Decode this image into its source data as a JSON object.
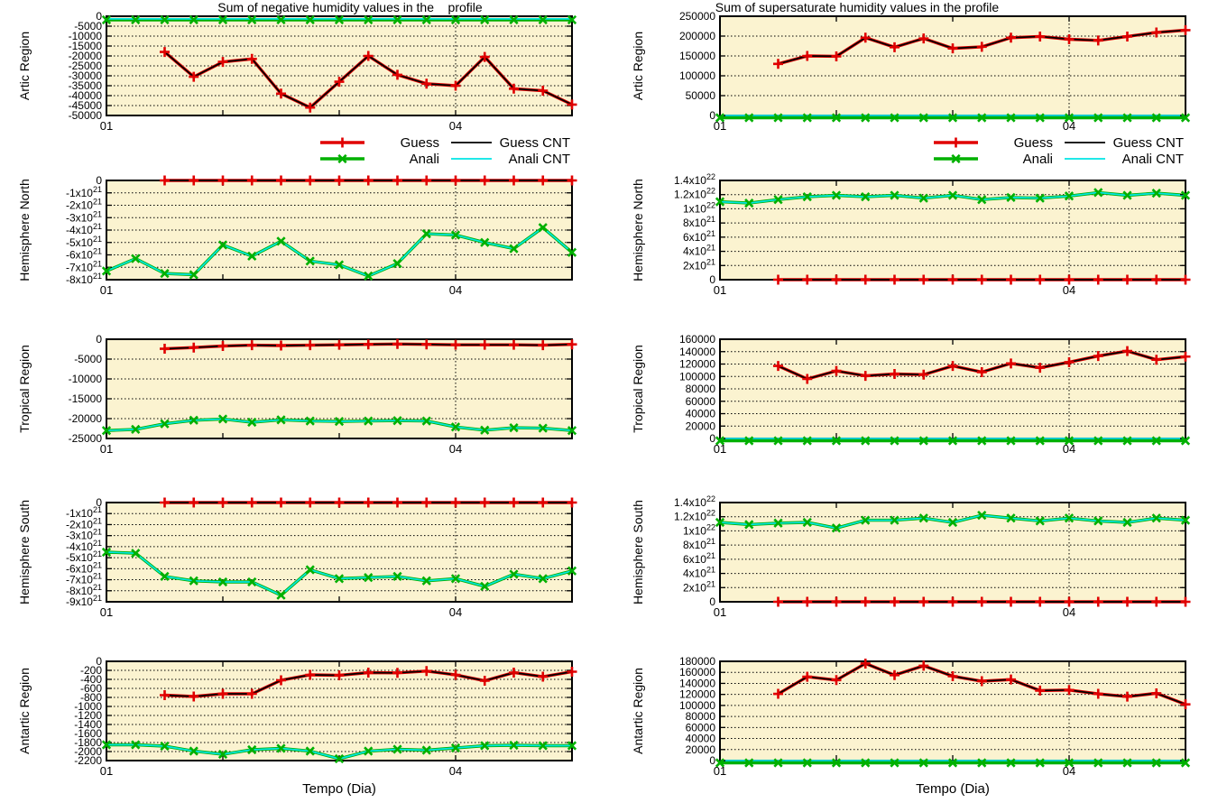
{
  "titles": {
    "left": "Sum of negative humidity values in the    profile",
    "right": "Sum of supersaturate humidity values in the profile"
  },
  "xlabel": "Tempo (Dia)",
  "colors": {
    "guess": "#e00000",
    "anali": "#00b000",
    "guess_cnt": "#000000",
    "anali_cnt": "#00e5e5",
    "plot_fill": "#fbf3d0",
    "frame": "#000000",
    "grid": "#000000"
  },
  "legend": {
    "items": [
      {
        "id": "guess",
        "label": "Guess",
        "marker": "plus"
      },
      {
        "id": "anali",
        "label": "Anali",
        "marker": "x"
      },
      {
        "id": "guess_cnt",
        "label": "Guess CNT",
        "marker": "none"
      },
      {
        "id": "anali_cnt",
        "label": "Anali CNT",
        "marker": "none"
      }
    ]
  },
  "x_axis": {
    "range_days": [
      1,
      5
    ],
    "tick_labels": [
      {
        "day": 1,
        "label": "01"
      },
      {
        "day": 4,
        "label": "04"
      }
    ],
    "minor_tick_days": [
      2,
      3,
      4
    ],
    "gridline_day": 4
  },
  "chart_data": [
    {
      "id": "artic-negative",
      "type": "line",
      "region": "Artic Region",
      "ylim": [
        -50000,
        0
      ],
      "ytick_values": [
        0,
        -5000,
        -10000,
        -15000,
        -20000,
        -25000,
        -30000,
        -35000,
        -40000,
        -45000,
        -50000
      ],
      "ytick_labels": [
        "0",
        "-5000",
        "-10000",
        "-15000",
        "-20000",
        "-25000",
        "-30000",
        "-35000",
        "-40000",
        "-45000",
        "-50000"
      ],
      "series": [
        {
          "name": "Guess",
          "key": "guess",
          "start_day": 1.5,
          "step_days": 0.25,
          "values": [
            -18000,
            -30500,
            -23000,
            -21500,
            -39000,
            -46000,
            -33000,
            -20000,
            -29500,
            -34000,
            -35000,
            -20500,
            -36500,
            -37500,
            -44500
          ]
        },
        {
          "name": "Guess CNT",
          "key": "guess_cnt",
          "overlaps": "guess"
        },
        {
          "name": "Anali",
          "key": "anali",
          "start_day": 1.0,
          "step_days": 0.25,
          "values": [
            -1800,
            -1800,
            -1800,
            -1800,
            -1800,
            -1800,
            -1800,
            -1800,
            -1800,
            -1800,
            -1800,
            -1800,
            -1800,
            -1800,
            -1800,
            -1800,
            -1800
          ]
        },
        {
          "name": "Anali CNT",
          "key": "anali_cnt",
          "start_day": 1.0,
          "step_days": 0.25,
          "values": [
            -1300,
            -1300,
            -1300,
            -1300,
            -1300,
            -1300,
            -1300,
            -1300,
            -1300,
            -1300,
            -1300,
            -1300,
            -1300,
            -1300,
            -1300,
            -1300,
            -1300
          ]
        }
      ]
    },
    {
      "id": "artic-supersaturate",
      "type": "line",
      "region": "Artic Region",
      "ylim": [
        0,
        250000
      ],
      "ytick_values": [
        0,
        50000,
        100000,
        150000,
        200000,
        250000
      ],
      "ytick_labels": [
        "0",
        "50000",
        "100000",
        "150000",
        "200000",
        "250000"
      ],
      "series": [
        {
          "name": "Guess",
          "key": "guess",
          "start_day": 1.5,
          "step_days": 0.25,
          "values": [
            130000,
            150000,
            149000,
            196000,
            172000,
            194000,
            169000,
            173000,
            196000,
            199000,
            192000,
            189000,
            199000,
            209000,
            215000
          ]
        },
        {
          "name": "Guess CNT",
          "key": "guess_cnt",
          "overlaps": "guess"
        },
        {
          "name": "Anali",
          "key": "anali",
          "start_day": 1.0,
          "step_days": 0.25,
          "values": [
            0,
            0,
            0,
            0,
            0,
            0,
            0,
            0,
            0,
            0,
            0,
            0,
            0,
            0,
            0,
            0,
            0
          ]
        },
        {
          "name": "Anali CNT",
          "key": "anali_cnt",
          "overlaps": "anali"
        }
      ]
    },
    {
      "id": "hemisphere-north-negative",
      "type": "line",
      "region": "Hemisphere North",
      "ylim": [
        -8e+21,
        0
      ],
      "ytick_values": [
        0,
        -1e+21,
        -2e+21,
        -3e+21,
        -4e+21,
        -5e+21,
        -6e+21,
        -7e+21,
        -8e+21
      ],
      "ytick_labels": [
        "0",
        "-1x10^21",
        "-2x10^21",
        "-3x10^21",
        "-4x10^21",
        "-5x10^21",
        "-6x10^21",
        "-7x10^21",
        "-8x10^21"
      ],
      "series": [
        {
          "name": "Guess",
          "key": "guess",
          "start_day": 1.5,
          "step_days": 0.25,
          "values": [
            0,
            0,
            0,
            0,
            0,
            0,
            0,
            0,
            0,
            0,
            0,
            0,
            0,
            0,
            0
          ]
        },
        {
          "name": "Guess CNT",
          "key": "guess_cnt",
          "overlaps": "guess"
        },
        {
          "name": "Anali",
          "key": "anali",
          "start_day": 1.0,
          "step_days": 0.25,
          "values": [
            -7.3e+21,
            -6.3e+21,
            -7.5e+21,
            -7.6e+21,
            -5.2e+21,
            -6.1e+21,
            -4.9e+21,
            -6.5e+21,
            -6.8e+21,
            -7.7e+21,
            -6.7e+21,
            -4.3e+21,
            -4.4e+21,
            -5e+21,
            -5.5e+21,
            -3.8e+21,
            -5.8e+21
          ]
        },
        {
          "name": "Anali CNT",
          "key": "anali_cnt",
          "overlaps": "anali"
        }
      ]
    },
    {
      "id": "hemisphere-north-supersaturate",
      "type": "line",
      "region": "Hemisphere North",
      "ylim": [
        0,
        1.4e+22
      ],
      "ytick_values": [
        0,
        2e+21,
        4e+21,
        6e+21,
        8e+21,
        1e+22,
        1.2e+22,
        1.4e+22
      ],
      "ytick_labels": [
        "0",
        "2x10^21",
        "4x10^21",
        "6x10^21",
        "8x10^21",
        "1x10^22",
        "1.2x10^22",
        "1.4x10^22"
      ],
      "series": [
        {
          "name": "Guess",
          "key": "guess",
          "start_day": 1.5,
          "step_days": 0.25,
          "values": [
            0,
            0,
            0,
            0,
            0,
            0,
            0,
            0,
            0,
            0,
            0,
            0,
            0,
            0,
            0
          ]
        },
        {
          "name": "Guess CNT",
          "key": "guess_cnt",
          "overlaps": "guess"
        },
        {
          "name": "Anali",
          "key": "anali",
          "start_day": 1.0,
          "step_days": 0.25,
          "values": [
            1.1e+22,
            1.08e+22,
            1.13e+22,
            1.17e+22,
            1.19e+22,
            1.17e+22,
            1.19e+22,
            1.15e+22,
            1.19e+22,
            1.13e+22,
            1.16e+22,
            1.15e+22,
            1.18e+22,
            1.23e+22,
            1.19e+22,
            1.22e+22,
            1.19e+22
          ]
        },
        {
          "name": "Anali CNT",
          "key": "anali_cnt",
          "overlaps": "anali"
        }
      ]
    },
    {
      "id": "tropical-negative",
      "type": "line",
      "region": "Tropical Region",
      "ylim": [
        -25000,
        0
      ],
      "ytick_values": [
        0,
        -5000,
        -10000,
        -15000,
        -20000,
        -25000
      ],
      "ytick_labels": [
        "0",
        "-5000",
        "-10000",
        "-15000",
        "-20000",
        "-25000"
      ],
      "series": [
        {
          "name": "Guess",
          "key": "guess",
          "start_day": 1.5,
          "step_days": 0.25,
          "values": [
            -2400,
            -2100,
            -1700,
            -1500,
            -1600,
            -1500,
            -1400,
            -1300,
            -1200,
            -1300,
            -1400,
            -1400,
            -1400,
            -1500,
            -1300
          ]
        },
        {
          "name": "Guess CNT",
          "key": "guess_cnt",
          "overlaps": "guess"
        },
        {
          "name": "Anali",
          "key": "anali",
          "start_day": 1.0,
          "step_days": 0.25,
          "values": [
            -23000,
            -22700,
            -21300,
            -20400,
            -20100,
            -20900,
            -20300,
            -20600,
            -20700,
            -20600,
            -20500,
            -20600,
            -22100,
            -22900,
            -22300,
            -22400,
            -23000
          ]
        },
        {
          "name": "Anali CNT",
          "key": "anali_cnt",
          "overlaps": "anali"
        }
      ]
    },
    {
      "id": "tropical-supersaturate",
      "type": "line",
      "region": "Tropical Region",
      "ylim": [
        0,
        160000
      ],
      "ytick_values": [
        0,
        20000,
        40000,
        60000,
        80000,
        100000,
        120000,
        140000,
        160000
      ],
      "ytick_labels": [
        "0",
        "20000",
        "40000",
        "60000",
        "80000",
        "100000",
        "120000",
        "140000",
        "160000"
      ],
      "series": [
        {
          "name": "Guess",
          "key": "guess",
          "start_day": 1.5,
          "step_days": 0.25,
          "values": [
            117000,
            96000,
            109000,
            101000,
            104000,
            103000,
            117000,
            107000,
            121000,
            114000,
            123000,
            133000,
            141000,
            127000,
            132000
          ]
        },
        {
          "name": "Guess CNT",
          "key": "guess_cnt",
          "overlaps": "guess"
        },
        {
          "name": "Anali",
          "key": "anali",
          "start_day": 1.0,
          "step_days": 0.25,
          "values": [
            0,
            0,
            0,
            0,
            0,
            0,
            0,
            0,
            0,
            0,
            0,
            0,
            0,
            0,
            0,
            0,
            0
          ]
        },
        {
          "name": "Anali CNT",
          "key": "anali_cnt",
          "overlaps": "anali"
        }
      ]
    },
    {
      "id": "hemisphere-south-negative",
      "type": "line",
      "region": "Hemisphere South",
      "ylim": [
        -9e+21,
        0
      ],
      "ytick_values": [
        0,
        -1e+21,
        -2e+21,
        -3e+21,
        -4e+21,
        -5e+21,
        -6e+21,
        -7e+21,
        -8e+21,
        -9e+21
      ],
      "ytick_labels": [
        "0",
        "-1x10^21",
        "-2x10^21",
        "-3x10^21",
        "-4x10^21",
        "-5x10^21",
        "-6x10^21",
        "-7x10^21",
        "-8x10^21",
        "-9x10^21"
      ],
      "series": [
        {
          "name": "Guess",
          "key": "guess",
          "start_day": 1.5,
          "step_days": 0.25,
          "values": [
            0,
            0,
            0,
            0,
            0,
            0,
            0,
            0,
            0,
            0,
            0,
            0,
            0,
            0,
            0
          ]
        },
        {
          "name": "Guess CNT",
          "key": "guess_cnt",
          "overlaps": "guess"
        },
        {
          "name": "Anali",
          "key": "anali",
          "start_day": 1.0,
          "step_days": 0.25,
          "values": [
            -4.5e+21,
            -4.6e+21,
            -6.7e+21,
            -7.1e+21,
            -7.2e+21,
            -7.2e+21,
            -8.4e+21,
            -6.1e+21,
            -6.9e+21,
            -6.8e+21,
            -6.7e+21,
            -7.1e+21,
            -6.9e+21,
            -7.6e+21,
            -6.5e+21,
            -6.9e+21,
            -6.2e+21
          ]
        },
        {
          "name": "Anali CNT",
          "key": "anali_cnt",
          "overlaps": "anali"
        }
      ]
    },
    {
      "id": "hemisphere-south-supersaturate",
      "type": "line",
      "region": "Hemisphere South",
      "ylim": [
        0,
        1.4e+22
      ],
      "ytick_values": [
        0,
        2e+21,
        4e+21,
        6e+21,
        8e+21,
        1e+22,
        1.2e+22,
        1.4e+22
      ],
      "ytick_labels": [
        "0",
        "2x10^21",
        "4x10^21",
        "6x10^21",
        "8x10^21",
        "1x10^22",
        "1.2x10^22",
        "1.4x10^22"
      ],
      "series": [
        {
          "name": "Guess",
          "key": "guess",
          "start_day": 1.5,
          "step_days": 0.25,
          "values": [
            0,
            0,
            0,
            0,
            0,
            0,
            0,
            0,
            0,
            0,
            0,
            0,
            0,
            0,
            0
          ]
        },
        {
          "name": "Guess CNT",
          "key": "guess_cnt",
          "overlaps": "guess"
        },
        {
          "name": "Anali",
          "key": "anali",
          "start_day": 1.0,
          "step_days": 0.25,
          "values": [
            1.12e+22,
            1.09e+22,
            1.11e+22,
            1.12e+22,
            1.04e+22,
            1.15e+22,
            1.15e+22,
            1.18e+22,
            1.12e+22,
            1.22e+22,
            1.18e+22,
            1.14e+22,
            1.18e+22,
            1.14e+22,
            1.12e+22,
            1.18e+22,
            1.15e+22
          ]
        },
        {
          "name": "Anali CNT",
          "key": "anali_cnt",
          "overlaps": "anali"
        }
      ]
    },
    {
      "id": "antartic-negative",
      "type": "line",
      "region": "Antartic Region",
      "ylim": [
        -2200,
        0
      ],
      "ytick_values": [
        0,
        -200,
        -400,
        -600,
        -800,
        -1000,
        -1200,
        -1400,
        -1600,
        -1800,
        -2000,
        -2200
      ],
      "ytick_labels": [
        "0",
        "-200",
        "-400",
        "-600",
        "-800",
        "-1000",
        "-1200",
        "-1400",
        "-1600",
        "-1800",
        "-2000",
        "-2200"
      ],
      "series": [
        {
          "name": "Guess",
          "key": "guess",
          "start_day": 1.5,
          "step_days": 0.25,
          "values": [
            -750,
            -780,
            -720,
            -720,
            -420,
            -300,
            -310,
            -250,
            -255,
            -215,
            -300,
            -430,
            -250,
            -340,
            -230
          ]
        },
        {
          "name": "Guess CNT",
          "key": "guess_cnt",
          "overlaps": "guess"
        },
        {
          "name": "Anali",
          "key": "anali",
          "start_day": 1.0,
          "step_days": 0.25,
          "values": [
            -1850,
            -1850,
            -1880,
            -1990,
            -2060,
            -1960,
            -1930,
            -1990,
            -2160,
            -1990,
            -1950,
            -1970,
            -1920,
            -1870,
            -1860,
            -1870,
            -1870
          ]
        },
        {
          "name": "Anali CNT",
          "key": "anali_cnt",
          "overlaps": "anali"
        }
      ]
    },
    {
      "id": "antartic-supersaturate",
      "type": "line",
      "region": "Antartic Region",
      "ylim": [
        0,
        180000
      ],
      "ytick_values": [
        0,
        20000,
        40000,
        60000,
        80000,
        100000,
        120000,
        140000,
        160000,
        180000
      ],
      "ytick_labels": [
        "0",
        "20000",
        "40000",
        "60000",
        "80000",
        "100000",
        "120000",
        "140000",
        "160000",
        "180000"
      ],
      "series": [
        {
          "name": "Guess",
          "key": "guess",
          "start_day": 1.5,
          "step_days": 0.25,
          "values": [
            121000,
            152000,
            146000,
            176000,
            155000,
            172000,
            153000,
            144000,
            147000,
            127000,
            128000,
            121000,
            116000,
            122000,
            102000
          ]
        },
        {
          "name": "Guess CNT",
          "key": "guess_cnt",
          "overlaps": "guess"
        },
        {
          "name": "Anali",
          "key": "anali",
          "start_day": 1.0,
          "step_days": 0.25,
          "values": [
            0,
            0,
            0,
            0,
            0,
            0,
            0,
            0,
            0,
            0,
            0,
            0,
            0,
            0,
            0,
            0,
            0
          ]
        },
        {
          "name": "Anali CNT",
          "key": "anali_cnt",
          "overlaps": "anali"
        }
      ]
    }
  ]
}
